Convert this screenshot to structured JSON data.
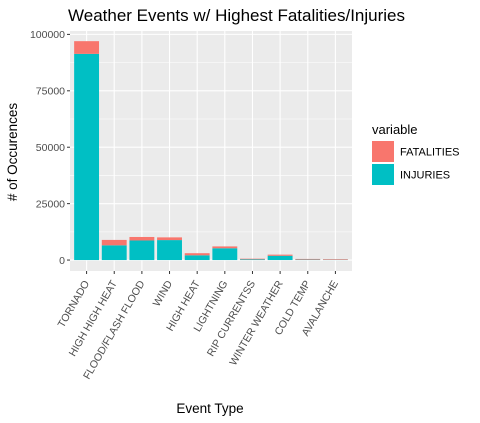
{
  "chart_data": {
    "type": "bar",
    "stacked": true,
    "title": "Weather Events w/ Highest Fatalities/Injuries",
    "xlabel": "Event Type",
    "ylabel": "# of Occurences",
    "categories": [
      "TORNADO",
      "HIGH HIGH HEAT",
      "FLOOD/FLASH FLOOD",
      "WIND",
      "HIGH HEAT",
      "LIGHTNING",
      "RIP CURRENTSS",
      "WINTER WEATHER",
      "COLD TEMP",
      "AVALANCHE"
    ],
    "series": [
      {
        "name": "INJURIES",
        "color": "#00BFC4",
        "values": [
          91364,
          6525,
          8674,
          8849,
          2100,
          5230,
          304,
          1900,
          200,
          170
        ]
      },
      {
        "name": "FATALITIES",
        "color": "#F8766D",
        "values": [
          5633,
          2400,
          1550,
          1200,
          937,
          817,
          300,
          500,
          300,
          225
        ]
      }
    ],
    "ylim": [
      -4850,
      101500
    ],
    "yticks": [
      0,
      25000,
      50000,
      75000,
      100000
    ],
    "ytick_labels": [
      "0",
      "25000",
      "50000",
      "75000",
      "100000"
    ],
    "legend_title": "variable",
    "legend_position": "right",
    "legend_entries": [
      {
        "label": "FATALITIES",
        "color": "#F8766D"
      },
      {
        "label": "INJURIES",
        "color": "#00BFC4"
      }
    ],
    "panel_background": "#EBEBEB",
    "grid": true
  }
}
